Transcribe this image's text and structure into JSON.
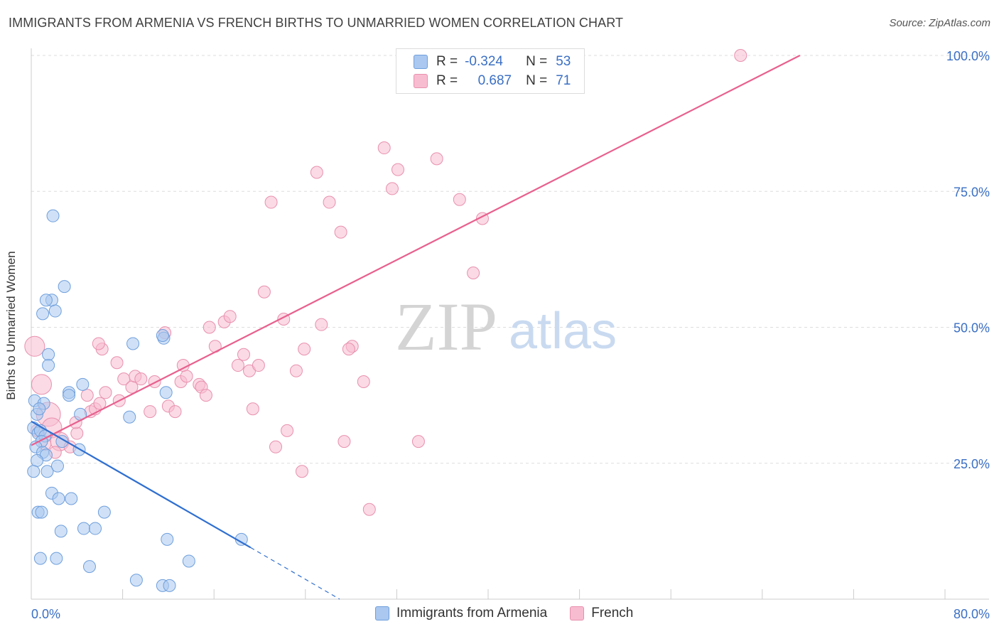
{
  "header": {
    "title": "IMMIGRANTS FROM ARMENIA VS FRENCH BIRTHS TO UNMARRIED WOMEN CORRELATION CHART",
    "source": "Source: ZipAtlas.com"
  },
  "legend": {
    "rows": [
      {
        "r_label": "R =",
        "r_value": "-0.324",
        "n_label": "N =",
        "n_value": "53"
      },
      {
        "r_label": "R =",
        "r_value": "0.687",
        "n_label": "N =",
        "n_value": "71"
      }
    ]
  },
  "watermark": {
    "zip": "ZIP",
    "atlas": "atlas"
  },
  "colors": {
    "armenia_fill": "#aac8f0",
    "armenia_stroke": "#6f9fdc",
    "armenia_line": "#2f6fd0",
    "french_fill": "#f8bcd0",
    "french_stroke": "#e890ae",
    "french_line": "#e8608e",
    "axis_label": "#3a6fc4",
    "grid": "#dddddd"
  },
  "chart_data": {
    "type": "scatter",
    "title": "IMMIGRANTS FROM ARMENIA VS FRENCH BIRTHS TO UNMARRIED WOMEN CORRELATION CHART",
    "xlabel": "",
    "ylabel": "Births to Unmarried Women",
    "xlim": [
      0,
      80
    ],
    "ylim": [
      0,
      100
    ],
    "x_tick_labels": [
      "0.0%",
      "80.0%"
    ],
    "y_tick_labels": [
      "25.0%",
      "50.0%",
      "75.0%",
      "100.0%"
    ],
    "y_ticks": [
      25,
      50,
      75,
      100
    ],
    "grid": true,
    "legend_position": "top-center",
    "series": [
      {
        "name": "Immigrants from Armenia",
        "r": -0.324,
        "n": 53,
        "points": [
          [
            0.3,
            36.5
          ],
          [
            0.5,
            34
          ],
          [
            0.2,
            31.5
          ],
          [
            0.6,
            30.5
          ],
          [
            0.8,
            31
          ],
          [
            1.2,
            30
          ],
          [
            0.9,
            29
          ],
          [
            0.4,
            28
          ],
          [
            1.0,
            27
          ],
          [
            1.3,
            26.5
          ],
          [
            0.5,
            25.5
          ],
          [
            0.2,
            23.5
          ],
          [
            1.4,
            23.5
          ],
          [
            2.3,
            24.5
          ],
          [
            1.1,
            36
          ],
          [
            0.7,
            35
          ],
          [
            1.5,
            45
          ],
          [
            1.5,
            43
          ],
          [
            1.8,
            55
          ],
          [
            1.3,
            55
          ],
          [
            2.1,
            53
          ],
          [
            1.0,
            52.5
          ],
          [
            1.9,
            70.5
          ],
          [
            2.9,
            57.5
          ],
          [
            3.3,
            38
          ],
          [
            3.3,
            37.5
          ],
          [
            4.5,
            39.5
          ],
          [
            4.3,
            34
          ],
          [
            4.2,
            27.5
          ],
          [
            2.7,
            29
          ],
          [
            1.8,
            19.5
          ],
          [
            2.4,
            18.5
          ],
          [
            3.5,
            18.5
          ],
          [
            0.6,
            16
          ],
          [
            0.9,
            16
          ],
          [
            2.6,
            12.5
          ],
          [
            4.6,
            13
          ],
          [
            5.6,
            13
          ],
          [
            6.4,
            16
          ],
          [
            0.8,
            7.5
          ],
          [
            2.2,
            7.5
          ],
          [
            5.1,
            6
          ],
          [
            9.2,
            3.5
          ],
          [
            11.5,
            2.5
          ],
          [
            12.1,
            2.5
          ],
          [
            11.9,
            11
          ],
          [
            13.8,
            7
          ],
          [
            18.4,
            11
          ],
          [
            11.6,
            48
          ],
          [
            11.5,
            48.5
          ],
          [
            8.9,
            47
          ],
          [
            11.8,
            38
          ],
          [
            8.6,
            33.5
          ]
        ],
        "trend": {
          "x": [
            0,
            19.2
          ],
          "y": [
            32.7,
            9.5
          ]
        },
        "trend_dashed": {
          "x": [
            19.2,
            27
          ],
          "y": [
            9.5,
            0
          ]
        }
      },
      {
        "name": "French",
        "r": 0.687,
        "n": 71,
        "points": [
          [
            0.3,
            46.5
          ],
          [
            0.9,
            39.5
          ],
          [
            1.5,
            34
          ],
          [
            1.8,
            31.5
          ],
          [
            2.5,
            29
          ],
          [
            3.4,
            28
          ],
          [
            4.0,
            30.5
          ],
          [
            2.1,
            27
          ],
          [
            3.9,
            32.5
          ],
          [
            4.9,
            37.5
          ],
          [
            5.2,
            34.5
          ],
          [
            5.6,
            35
          ],
          [
            6.0,
            36
          ],
          [
            6.2,
            46
          ],
          [
            6.5,
            38
          ],
          [
            5.9,
            47
          ],
          [
            7.5,
            43.5
          ],
          [
            7.7,
            36.5
          ],
          [
            8.1,
            40.5
          ],
          [
            8.8,
            39
          ],
          [
            9.1,
            41
          ],
          [
            9.6,
            40.5
          ],
          [
            10.4,
            34.5
          ],
          [
            10.8,
            40
          ],
          [
            11.7,
            49
          ],
          [
            12.0,
            35.5
          ],
          [
            12.6,
            34.5
          ],
          [
            13.1,
            40
          ],
          [
            13.6,
            41
          ],
          [
            13.3,
            43
          ],
          [
            14.7,
            39.5
          ],
          [
            14.9,
            39
          ],
          [
            15.3,
            37.5
          ],
          [
            16.1,
            46.5
          ],
          [
            15.6,
            50
          ],
          [
            16.9,
            51
          ],
          [
            17.4,
            52
          ],
          [
            18.1,
            43
          ],
          [
            18.6,
            45
          ],
          [
            19.1,
            42
          ],
          [
            19.4,
            35
          ],
          [
            19.9,
            43
          ],
          [
            20.4,
            56.5
          ],
          [
            21.0,
            73
          ],
          [
            21.4,
            28
          ],
          [
            22.1,
            51.5
          ],
          [
            22.4,
            31
          ],
          [
            23.2,
            42
          ],
          [
            23.7,
            23.5
          ],
          [
            23.9,
            46
          ],
          [
            25.0,
            78.5
          ],
          [
            25.4,
            50.5
          ],
          [
            26.1,
            73
          ],
          [
            27.1,
            67.5
          ],
          [
            27.4,
            29
          ],
          [
            28.1,
            46.5
          ],
          [
            27.8,
            46
          ],
          [
            29.1,
            40
          ],
          [
            29.6,
            16.5
          ],
          [
            30.9,
            83
          ],
          [
            31.6,
            75.5
          ],
          [
            32.1,
            79
          ],
          [
            33.9,
            29
          ],
          [
            35.5,
            81
          ],
          [
            37.5,
            73.5
          ],
          [
            38.7,
            60
          ],
          [
            39.5,
            70
          ],
          [
            36.1,
            100
          ],
          [
            62.1,
            100
          ],
          [
            0.5,
            31
          ],
          [
            1.2,
            28.5
          ]
        ],
        "trend": {
          "x": [
            0,
            67.3
          ],
          "y": [
            28.3,
            100
          ]
        }
      }
    ]
  },
  "bottom_legend": {
    "items": [
      {
        "label": "Immigrants from Armenia"
      },
      {
        "label": "French"
      }
    ]
  }
}
